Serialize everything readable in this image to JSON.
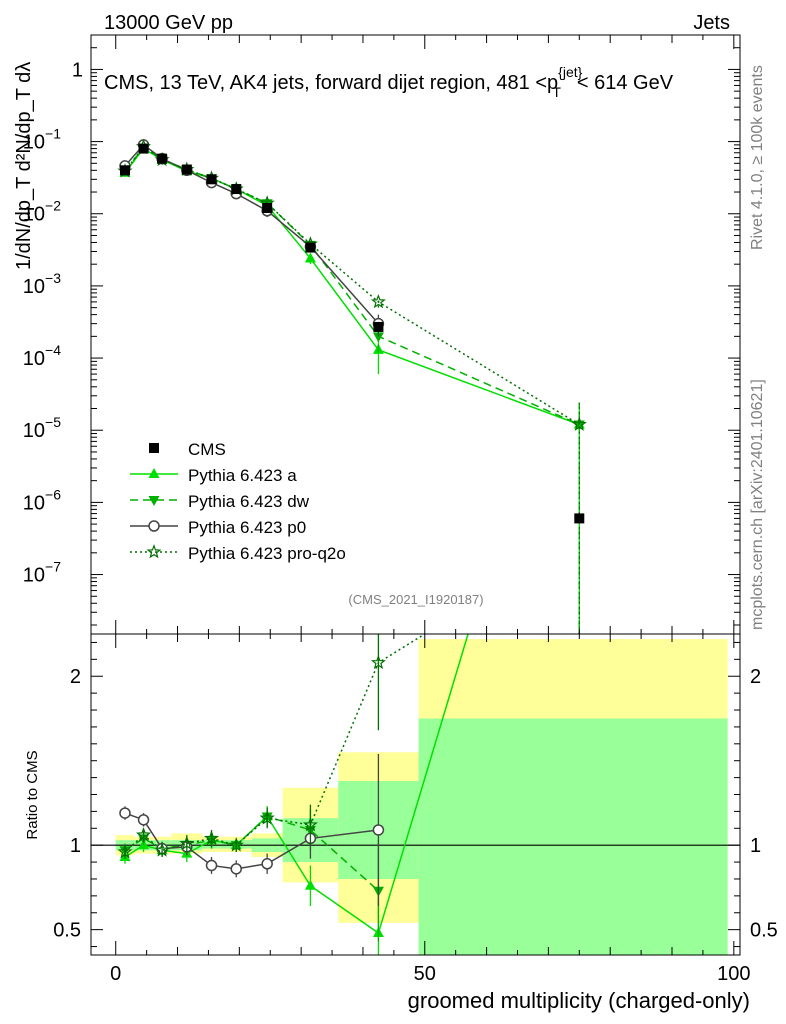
{
  "header": {
    "left": "13000 GeV pp",
    "right": "Jets"
  },
  "side_labels": {
    "rivet": "Rivet 4.1.0, ≥ 100k events",
    "mcplots": "mcplots.cern.ch [arXiv:2401.10621]"
  },
  "chart_data": [
    {
      "type": "line",
      "panel": "main",
      "title": "CMS, 13 TeV, AK4 jets, forward dijet region, 481 <p_T^{jet}< 614 GeV",
      "ylabel": "1/dN/dp_T  d²N/dp_T dλ",
      "yscale": "log",
      "ylim": [
        1.5e-08,
        3
      ],
      "xlim": [
        -4,
        101
      ],
      "analysis_label": "(CMS_2021_I1920187)",
      "y_ticks": [
        {
          "value": 1,
          "label": "1"
        },
        {
          "value": 0.1,
          "label": "10",
          "exp": "−1"
        },
        {
          "value": 0.01,
          "label": "10",
          "exp": "−2"
        },
        {
          "value": 0.001,
          "label": "10",
          "exp": "−3"
        },
        {
          "value": 0.0001,
          "label": "10",
          "exp": "−4"
        },
        {
          "value": 1e-05,
          "label": "10",
          "exp": "−5"
        },
        {
          "value": 1e-06,
          "label": "10",
          "exp": "−6"
        },
        {
          "value": 1e-07,
          "label": "10",
          "exp": "−7"
        }
      ],
      "legend_placement": "lower-left",
      "series": [
        {
          "name": "CMS",
          "color": "#000000",
          "marker": "square",
          "x": [
            1.5,
            4.5,
            7.5,
            11.5,
            15.5,
            19.5,
            24.5,
            31.5,
            42.5,
            75
          ],
          "y": [
            0.04,
            0.08,
            0.058,
            0.041,
            0.03,
            0.022,
            0.012,
            0.0034,
            0.00027,
            6e-07
          ]
        },
        {
          "name": "Pythia 6.423 a",
          "color": "#00e000",
          "marker": "triangle-up",
          "dash": "",
          "x": [
            1.5,
            4.5,
            7.5,
            11.5,
            15.5,
            19.5,
            24.5,
            31.5,
            42.5,
            75
          ],
          "y": [
            0.037,
            0.08,
            0.056,
            0.039,
            0.031,
            0.022,
            0.013,
            0.0024,
            0.00013,
            1.2e-05
          ],
          "err": [
            0.003,
            0.004,
            0.003,
            0.003,
            0.002,
            0.002,
            0.002,
            0.0004,
            7e-05,
            1.2e-05
          ]
        },
        {
          "name": "Pythia 6.423 dw",
          "color": "#00b000",
          "marker": "triangle-down",
          "dash": "8,5",
          "x": [
            1.5,
            4.5,
            7.5,
            11.5,
            15.5,
            19.5,
            24.5,
            31.5,
            42.5,
            75
          ],
          "y": [
            0.039,
            0.083,
            0.057,
            0.041,
            0.031,
            0.022,
            0.014,
            0.0037,
            0.0002,
            1.2e-05
          ],
          "err": [
            0.003,
            0.004,
            0.003,
            0.003,
            0.002,
            0.002,
            0.002,
            0.0004,
            8e-05,
            1.2e-05
          ]
        },
        {
          "name": "Pythia 6.423 p0",
          "color": "#444444",
          "marker": "circle-open",
          "dash": "",
          "x": [
            1.5,
            4.5,
            7.5,
            11.5,
            15.5,
            19.5,
            24.5,
            31.5,
            42.5
          ],
          "y": [
            0.046,
            0.09,
            0.058,
            0.04,
            0.027,
            0.019,
            0.011,
            0.0035,
            0.0003
          ],
          "err": [
            0.003,
            0.004,
            0.003,
            0.003,
            0.002,
            0.002,
            0.002,
            0.0004,
            0.0001
          ]
        },
        {
          "name": "Pythia 6.423 pro-q2o",
          "color": "#007000",
          "marker": "star-open",
          "dash": "2,3",
          "x": [
            1.5,
            4.5,
            7.5,
            11.5,
            15.5,
            19.5,
            24.5,
            31.5,
            42.5,
            75
          ],
          "y": [
            0.039,
            0.085,
            0.056,
            0.041,
            0.031,
            0.022,
            0.014,
            0.0038,
            0.0006,
            1.2e-05
          ],
          "err": [
            0.003,
            0.004,
            0.003,
            0.003,
            0.002,
            0.002,
            0.002,
            0.0004,
            0.0001,
            1.2e-05
          ]
        }
      ]
    },
    {
      "type": "line",
      "panel": "ratio",
      "ylabel": "Ratio to CMS",
      "xlabel": "groomed multiplicity (charged-only)",
      "xlim": [
        -4,
        101
      ],
      "ylim": [
        0.35,
        2.25
      ],
      "x_ticks": [
        {
          "value": 0,
          "label": "0"
        },
        {
          "value": 50,
          "label": "50"
        },
        {
          "value": 100,
          "label": "100"
        }
      ],
      "y_ticks": [
        {
          "value": 0.5,
          "label": "0.5"
        },
        {
          "value": 1,
          "label": "1"
        },
        {
          "value": 2,
          "label": "2"
        }
      ],
      "bands": [
        {
          "x0": 0,
          "x1": 3,
          "yellow": [
            0.94,
            1.06
          ],
          "green": [
            0.97,
            1.03
          ]
        },
        {
          "x0": 3,
          "x1": 6,
          "yellow": [
            0.95,
            1.05
          ],
          "green": [
            0.97,
            1.03
          ]
        },
        {
          "x0": 6,
          "x1": 9,
          "yellow": [
            0.95,
            1.05
          ],
          "green": [
            0.97,
            1.03
          ]
        },
        {
          "x0": 9,
          "x1": 14,
          "yellow": [
            0.95,
            1.07
          ],
          "green": [
            0.97,
            1.03
          ]
        },
        {
          "x0": 14,
          "x1": 17,
          "yellow": [
            0.96,
            1.05
          ],
          "green": [
            0.98,
            1.03
          ]
        },
        {
          "x0": 17,
          "x1": 22,
          "yellow": [
            0.96,
            1.05
          ],
          "green": [
            0.98,
            1.03
          ]
        },
        {
          "x0": 22,
          "x1": 27,
          "yellow": [
            0.93,
            1.07
          ],
          "green": [
            0.96,
            1.04
          ]
        },
        {
          "x0": 27,
          "x1": 36,
          "yellow": [
            0.78,
            1.34
          ],
          "green": [
            0.9,
            1.16
          ]
        },
        {
          "x0": 36,
          "x1": 49,
          "yellow": [
            0.54,
            1.55
          ],
          "green": [
            0.8,
            1.38
          ]
        },
        {
          "x0": 49,
          "x1": 99,
          "yellow": [
            0.35,
            2.22
          ],
          "green": [
            0.35,
            1.75
          ]
        }
      ],
      "series": [
        {
          "name": "Pythia 6.423 a",
          "x": [
            1.5,
            4.5,
            7.5,
            11.5,
            15.5,
            19.5,
            24.5,
            31.5,
            42.5
          ],
          "y": [
            0.93,
            1.0,
            0.97,
            0.95,
            1.03,
            1.0,
            1.17,
            0.76,
            0.48
          ],
          "err": [
            0.04,
            0.04,
            0.04,
            0.05,
            0.05,
            0.04,
            0.06,
            0.12,
            0.2
          ],
          "continue_to": [
            57,
            2.25
          ]
        },
        {
          "name": "Pythia 6.423 dw",
          "x": [
            1.5,
            4.5,
            7.5,
            11.5,
            15.5,
            19.5,
            24.5,
            31.5,
            42.5
          ],
          "y": [
            0.97,
            1.04,
            0.98,
            1.0,
            1.03,
            1.0,
            1.17,
            1.09,
            0.73
          ],
          "err": [
            0.04,
            0.04,
            0.04,
            0.05,
            0.05,
            0.04,
            0.06,
            0.12,
            0.3
          ]
        },
        {
          "name": "Pythia 6.423 p0",
          "x": [
            1.5,
            4.5,
            7.5,
            11.5,
            15.5,
            19.5,
            24.5,
            31.5,
            42.5
          ],
          "y": [
            1.19,
            1.15,
            0.98,
            0.99,
            0.88,
            0.86,
            0.89,
            1.04,
            1.09
          ],
          "err": [
            0.04,
            0.04,
            0.04,
            0.05,
            0.05,
            0.05,
            0.06,
            0.12,
            0.45
          ]
        },
        {
          "name": "Pythia 6.423 pro-q2o",
          "x": [
            1.5,
            4.5,
            7.5,
            11.5,
            15.5,
            19.5,
            24.5,
            31.5,
            42.5
          ],
          "y": [
            0.96,
            1.06,
            0.97,
            1.01,
            1.04,
            1.0,
            1.16,
            1.12,
            2.08
          ],
          "err": [
            0.04,
            0.04,
            0.04,
            0.05,
            0.05,
            0.04,
            0.06,
            0.12,
            0.4
          ],
          "continue_to": [
            50,
            2.25
          ]
        }
      ]
    }
  ]
}
